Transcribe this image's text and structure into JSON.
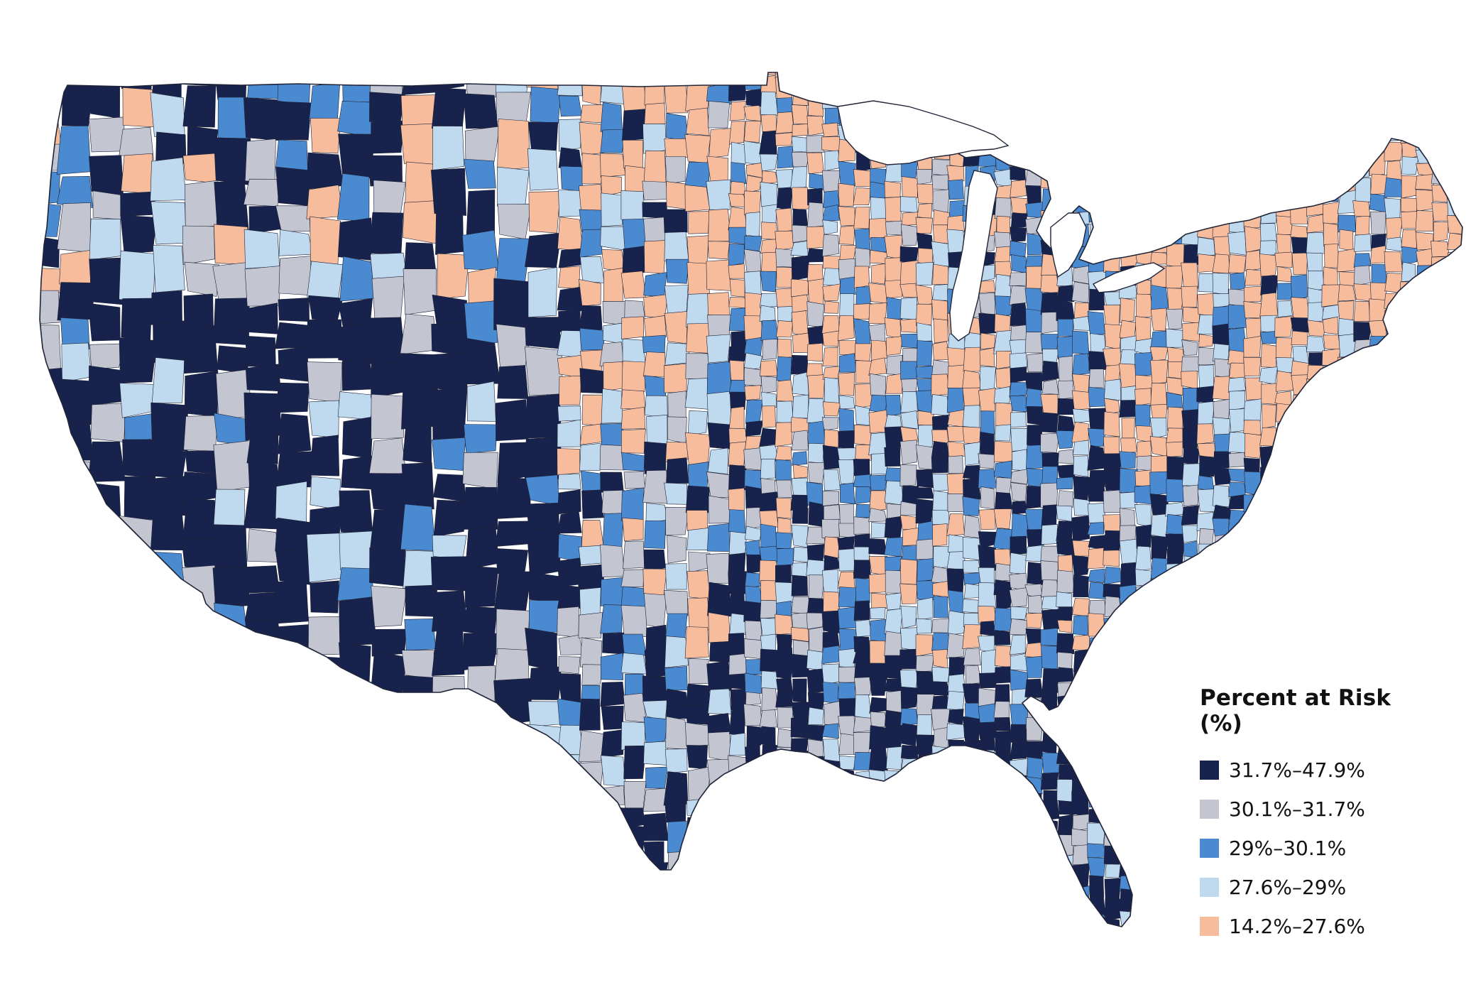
{
  "legend": {
    "title": "Percent at Risk (%)",
    "items": [
      {
        "label": "31.7%–47.9%",
        "color": "#17224d"
      },
      {
        "label": "30.1%–31.7%",
        "color": "#c3c5d1"
      },
      {
        "label": "29%–30.1%",
        "color": "#4a8ad0"
      },
      {
        "label": "27.6%–29%",
        "color": "#bfd9ef"
      },
      {
        "label": "14.2%–27.6%",
        "color": "#f7bc9c"
      }
    ]
  },
  "map": {
    "border_color": "#1f2438",
    "water_color": "#ffffff"
  }
}
